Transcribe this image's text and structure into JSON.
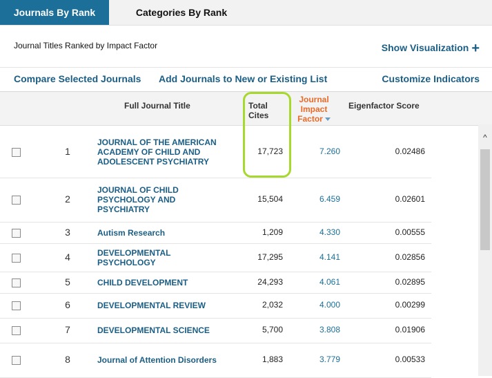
{
  "tabs": [
    {
      "label": "Journals By Rank",
      "active": true
    },
    {
      "label": "Categories By Rank",
      "active": false
    }
  ],
  "subheader": {
    "title": "Journal Titles Ranked by Impact Factor",
    "show_visualization": "Show Visualization",
    "show_visualization_icon": "+"
  },
  "actions": {
    "compare": "Compare Selected Journals",
    "add_list": "Add Journals to New or Existing List",
    "customize": "Customize Indicators"
  },
  "table": {
    "headers": {
      "title": "Full Journal Title",
      "total_cites_1": "Total",
      "total_cites_2": "Cites",
      "jif_1": "Journal",
      "jif_2": "Impact",
      "jif_3": "Factor",
      "eigenfactor": "Eigenfactor Score"
    },
    "rows": [
      {
        "rank": "1",
        "title_lines": [
          "JOURNAL OF THE AMERICAN",
          "ACADEMY OF CHILD AND",
          "ADOLESCENT PSYCHIATRY"
        ],
        "total_cites": "17,723",
        "jif": "7.260",
        "eigenfactor": "0.02486"
      },
      {
        "rank": "2",
        "title_lines": [
          "JOURNAL OF CHILD",
          "PSYCHOLOGY AND",
          "PSYCHIATRY"
        ],
        "total_cites": "15,504",
        "jif": "6.459",
        "eigenfactor": "0.02601"
      },
      {
        "rank": "3",
        "title_lines": [
          "Autism Research"
        ],
        "total_cites": "1,209",
        "jif": "4.330",
        "eigenfactor": "0.00555"
      },
      {
        "rank": "4",
        "title_lines": [
          "DEVELOPMENTAL",
          "PSYCHOLOGY"
        ],
        "total_cites": "17,295",
        "jif": "4.141",
        "eigenfactor": "0.02856"
      },
      {
        "rank": "5",
        "title_lines": [
          "CHILD DEVELOPMENT"
        ],
        "total_cites": "24,293",
        "jif": "4.061",
        "eigenfactor": "0.02895"
      },
      {
        "rank": "6",
        "title_lines": [
          "DEVELOPMENTAL REVIEW"
        ],
        "total_cites": "2,032",
        "jif": "4.000",
        "eigenfactor": "0.00299"
      },
      {
        "rank": "7",
        "title_lines": [
          "DEVELOPMENTAL SCIENCE"
        ],
        "total_cites": "5,700",
        "jif": "3.808",
        "eigenfactor": "0.01906"
      },
      {
        "rank": "8",
        "title_lines": [
          "Journal of Attention Disorders"
        ],
        "total_cites": "1,883",
        "jif": "3.779",
        "eigenfactor": "0.00533"
      }
    ]
  },
  "scrollbar": {
    "up_icon": "^"
  }
}
